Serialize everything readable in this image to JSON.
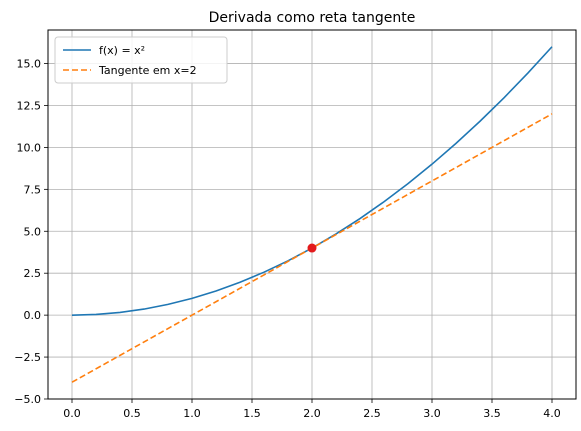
{
  "chart_data": {
    "type": "line",
    "title": "Derivada como reta tangente",
    "xlabel": "",
    "ylabel": "",
    "xlim": [
      -0.2,
      4.2
    ],
    "ylim": [
      -5.0,
      17.0
    ],
    "x_ticks": [
      0.0,
      0.5,
      1.0,
      1.5,
      2.0,
      2.5,
      3.0,
      3.5,
      4.0
    ],
    "x_tick_labels": [
      "0.0",
      "0.5",
      "1.0",
      "1.5",
      "2.0",
      "2.5",
      "3.0",
      "3.5",
      "4.0"
    ],
    "y_ticks": [
      -5.0,
      -2.5,
      0.0,
      2.5,
      5.0,
      7.5,
      10.0,
      12.5,
      15.0
    ],
    "y_tick_labels": [
      "−5.0",
      "−2.5",
      "0.0",
      "2.5",
      "5.0",
      "7.5",
      "10.0",
      "12.5",
      "15.0"
    ],
    "grid": true,
    "legend_position": "top-left",
    "series": [
      {
        "name": "f(x) = x²",
        "style": "solid",
        "color": "#1f77b4",
        "x": [
          0.0,
          0.2,
          0.4,
          0.6,
          0.8,
          1.0,
          1.2,
          1.4,
          1.6,
          1.8,
          2.0,
          2.2,
          2.4,
          2.6,
          2.8,
          3.0,
          3.2,
          3.4,
          3.6,
          3.8,
          4.0
        ],
        "y": [
          0.0,
          0.04,
          0.16,
          0.36,
          0.64,
          1.0,
          1.44,
          1.96,
          2.56,
          3.24,
          4.0,
          4.84,
          5.76,
          6.76,
          7.84,
          9.0,
          10.24,
          11.56,
          12.96,
          14.44,
          16.0
        ]
      },
      {
        "name": "Tangente em x=2",
        "style": "dashed",
        "color": "#ff7f0e",
        "x": [
          0.0,
          4.0
        ],
        "y": [
          -4.0,
          12.0
        ]
      }
    ],
    "points": [
      {
        "x": 2.0,
        "y": 4.0,
        "color": "#e31a1c"
      }
    ]
  }
}
